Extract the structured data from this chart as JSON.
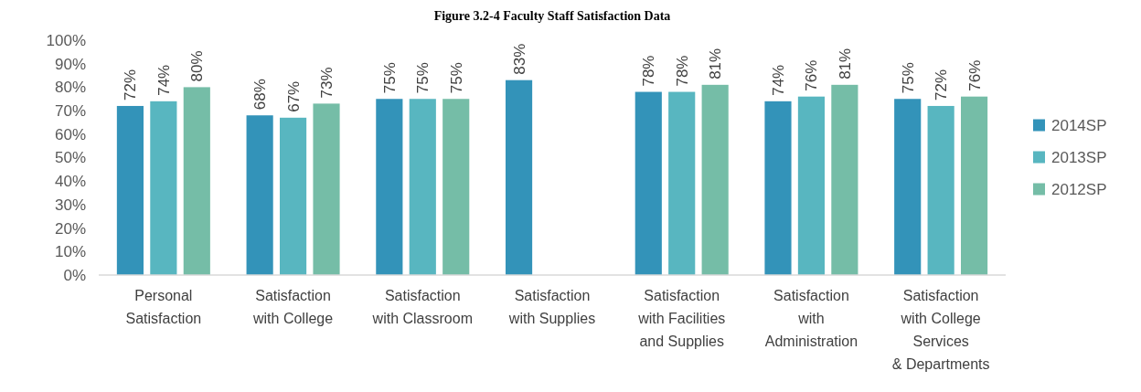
{
  "chart_data": {
    "type": "bar",
    "title": "Figure 3.2-4 Faculty Staff Satisfaction Data",
    "categories": [
      "Personal\nSatisfaction",
      "Satisfaction\nwith College",
      "Satisfaction\nwith Classroom",
      "Satisfaction\nwith Supplies",
      "Satisfaction\nwith Facilities\nand Supplies",
      "Satisfaction\nwith\nAdministration",
      "Satisfaction\nwith College\nServices\n& Departments"
    ],
    "series": [
      {
        "name": "2014SP",
        "color": "#3393b9",
        "values": [
          72,
          68,
          75,
          83,
          78,
          74,
          75
        ],
        "value_labels": [
          "72%",
          "68%",
          "75%",
          "83%",
          "78%",
          "74%",
          "75%"
        ]
      },
      {
        "name": "2013SP",
        "color": "#58b6c0",
        "values": [
          74,
          67,
          75,
          null,
          78,
          76,
          72
        ],
        "value_labels": [
          "74%",
          "67%",
          "75%",
          null,
          "78%",
          "76%",
          "72%"
        ]
      },
      {
        "name": "2012SP",
        "color": "#75bda7",
        "values": [
          80,
          73,
          75,
          null,
          81,
          81,
          76
        ],
        "value_labels": [
          "80%",
          "73%",
          "75%",
          null,
          "81%",
          "81%",
          "76%"
        ]
      }
    ],
    "ylim": [
      0,
      100
    ],
    "yticks": [
      {
        "value": 0,
        "label": "0%"
      },
      {
        "value": 10,
        "label": "10%"
      },
      {
        "value": 20,
        "label": "20%"
      },
      {
        "value": 30,
        "label": "30%"
      },
      {
        "value": 40,
        "label": "40%"
      },
      {
        "value": 50,
        "label": "50%"
      },
      {
        "value": 60,
        "label": "60%"
      },
      {
        "value": 70,
        "label": "70%"
      },
      {
        "value": 80,
        "label": "80%"
      },
      {
        "value": 90,
        "label": "90%"
      },
      {
        "value": 100,
        "label": "100%"
      }
    ],
    "grid": false,
    "legend": "right"
  }
}
